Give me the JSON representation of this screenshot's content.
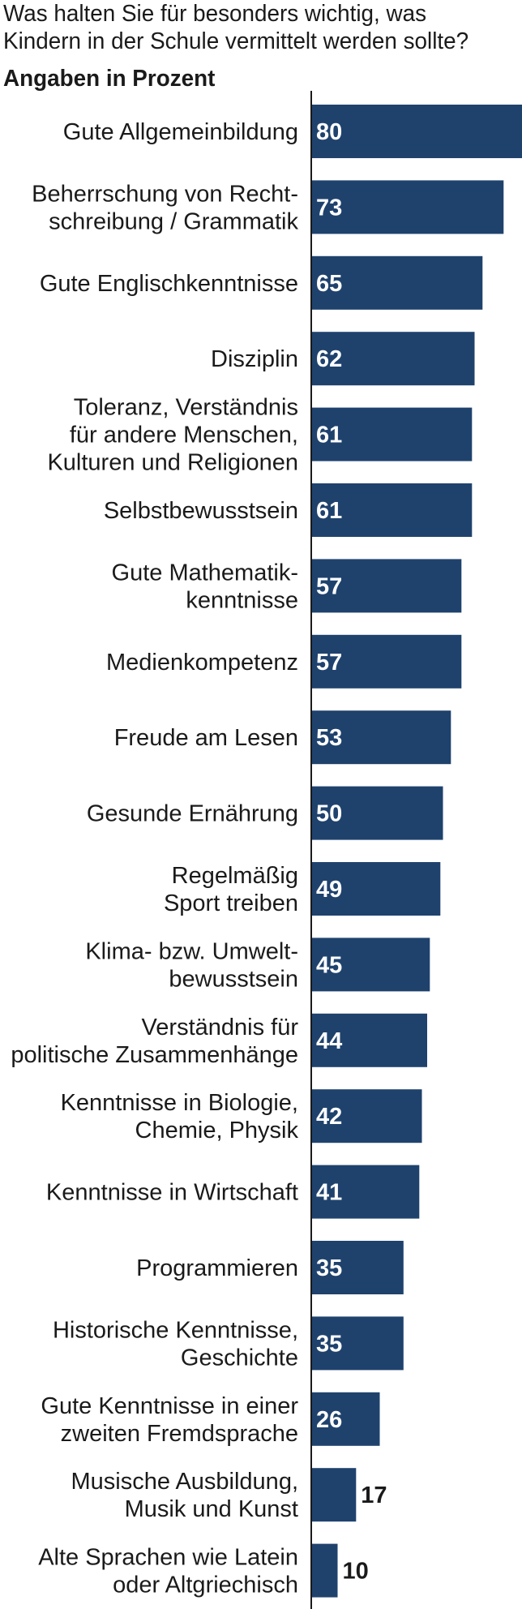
{
  "header": {
    "title": "Was halten Sie für besonders wichtig, was\nKindern in der Schule vermittelt werden sollte?",
    "subtitle": "Angaben in Prozent"
  },
  "colors": {
    "bar": "#1f426d",
    "axis": "#1a1a1a",
    "label_text": "#1a1a1a",
    "value_text_inside": "#ffffff"
  },
  "chart_data": {
    "type": "bar",
    "orientation": "horizontal",
    "title": "Was halten Sie für besonders wichtig, was Kindern in der Schule vermittelt werden sollte?",
    "subtitle": "Angaben in Prozent",
    "xlim": [
      0,
      80
    ],
    "grid": false,
    "legend": "none",
    "categories": [
      [
        "Gute Allgemeinbildung"
      ],
      [
        "Beherrschung von Recht-",
        "schreibung / Grammatik"
      ],
      [
        "Gute Englischkenntnisse"
      ],
      [
        "Disziplin"
      ],
      [
        "Toleranz, Verständnis",
        "für andere Menschen,",
        "Kulturen und Religionen"
      ],
      [
        "Selbstbewusstsein"
      ],
      [
        "Gute Mathematik-",
        "kenntnisse"
      ],
      [
        "Medienkompetenz"
      ],
      [
        "Freude am Lesen"
      ],
      [
        "Gesunde Ernährung"
      ],
      [
        "Regelmäßig",
        "Sport treiben"
      ],
      [
        "Klima- bzw. Umwelt-",
        "bewusstsein"
      ],
      [
        "Verständnis für",
        "politische Zusammenhänge"
      ],
      [
        "Kenntnisse in Biologie,",
        "Chemie, Physik"
      ],
      [
        "Kenntnisse in Wirtschaft"
      ],
      [
        "Programmieren"
      ],
      [
        "Historische Kenntnisse,",
        "Geschichte"
      ],
      [
        "Gute Kenntnisse in einer",
        "zweiten Fremdsprache"
      ],
      [
        "Musische Ausbildung,",
        "Musik und Kunst"
      ],
      [
        "Alte Sprachen wie Latein",
        "oder Altgriechisch"
      ]
    ],
    "values": [
      80,
      73,
      65,
      62,
      61,
      61,
      57,
      57,
      53,
      50,
      49,
      45,
      44,
      42,
      41,
      35,
      35,
      26,
      17,
      10
    ]
  }
}
